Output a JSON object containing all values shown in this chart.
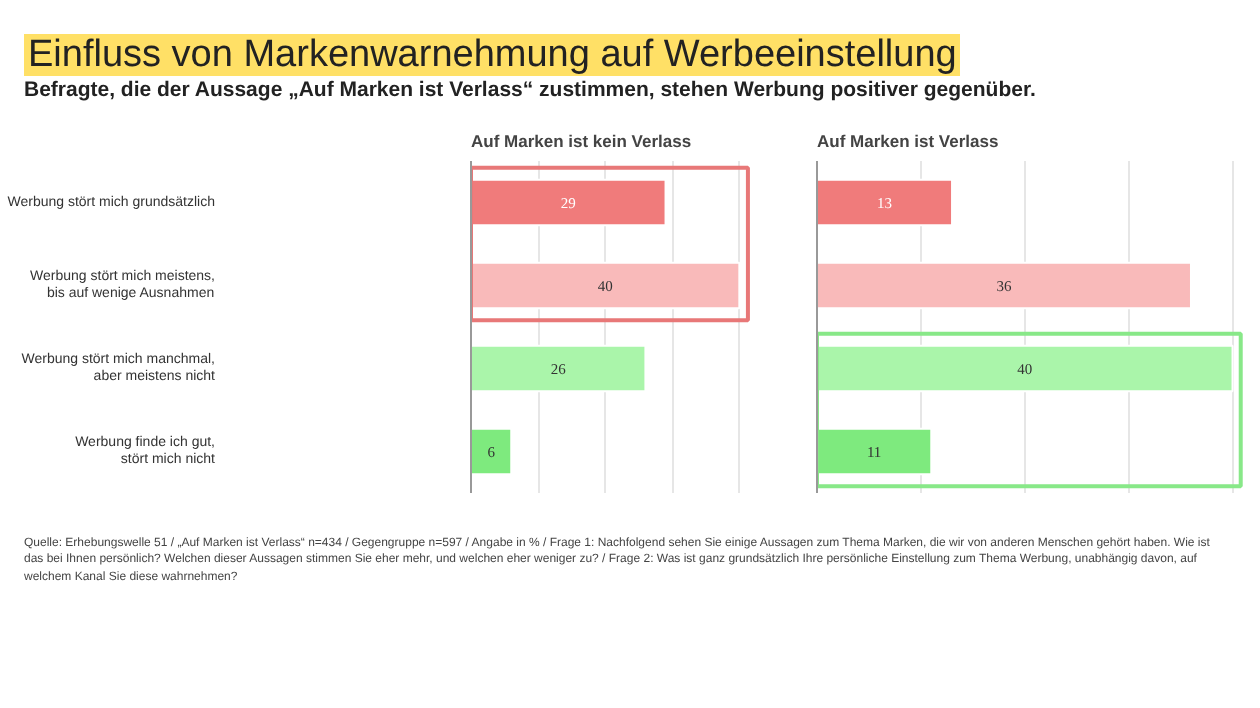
{
  "chart_data": [
    {
      "type": "other",
      "title": "Einfluss von Markenwarnehmung auf Werbeeinstellung",
      "subtitle": "Befragte, die der Aussage „Auf Marken ist Verlass“ zustimmen, stehen Werbung positiver gegenüber.",
      "annotations": [
        "Quelle: Erhebungswelle 51 / „Auf Marken ist Verlass“ n=434 / Gegengruppe n=597 / Angabe in % / Frage 1: Nachfolgend sehen Sie einige Aussagen zum Thema Marken, die wir von anderen Menschen gehört haben. Wie ist das bei Ihnen persönlich? Welchen dieser Aussagen stimmen Sie eher mehr, und welchen eher weniger zu? / Frage 2: Was ist ganz grundsätzlich Ihre persönliche Einstellung zum Thema Werbung, unabhängig davon, auf welchem Kanal Sie diese wahrnehmen?"
      ]
    },
    {
      "type": "bar",
      "orientation": "horizontal",
      "title": "Auf Marken ist kein Verlass",
      "categories": [
        "Werbung stört mich grundsätzlich",
        "Werbung stört mich meistens,\nbis auf wenige Ausnahmen",
        "Werbung stört mich manchmal,\naber meistens nicht",
        "Werbung finde ich gut,\nstört mich nicht"
      ],
      "values": [
        29,
        40,
        26,
        6
      ],
      "colors": [
        "#f07b7b",
        "#f9baba",
        "#aaf5aa",
        "#7eea7e"
      ],
      "data_labels": true,
      "xticks": [
        {
          "value": 10,
          "label": null
        },
        {
          "value": 20,
          "label": null
        },
        {
          "value": 30,
          "label": null
        },
        {
          "value": 40,
          "label": null
        }
      ],
      "grid": "x",
      "tick_labels": "y"
    },
    {
      "type": "bar",
      "orientation": "horizontal",
      "title": "Auf Marken ist Verlass",
      "categories": [
        null,
        null,
        null,
        null
      ],
      "values": [
        13,
        36,
        40,
        11
      ],
      "colors": [
        "#f07b7b",
        "#f9baba",
        "#aaf5aa",
        "#7eea7e"
      ],
      "data_labels": true,
      "xticks": [
        {
          "value": 10,
          "label": null
        },
        {
          "value": 20,
          "label": null
        },
        {
          "value": 30,
          "label": null
        },
        {
          "value": 40,
          "label": null
        }
      ],
      "grid": "x",
      "tick_labels": false
    }
  ]
}
